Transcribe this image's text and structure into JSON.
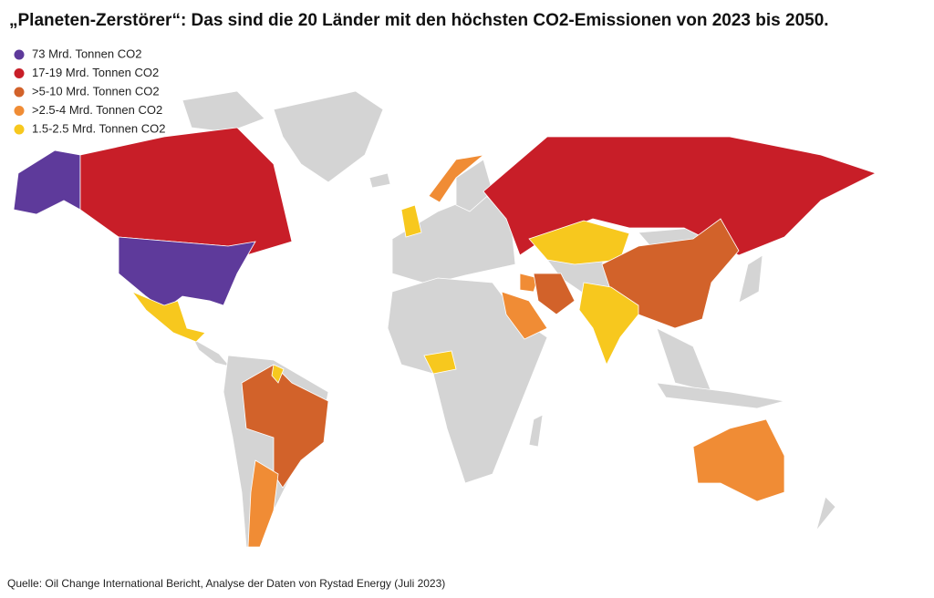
{
  "title": "„Planeten-Zerstörer“: Das sind die 20 Länder mit den höchsten CO2-Emissionen von 2023 bis 2050.",
  "legend": {
    "items": [
      {
        "label": "73 Mrd. Tonnen CO2",
        "color": "#5e3a9b"
      },
      {
        "label": "17-19 Mrd. Tonnen CO2",
        "color": "#c81e28"
      },
      {
        "label": ">5-10 Mrd. Tonnen CO2",
        "color": "#d2622a"
      },
      {
        "label": ">2.5-4 Mrd. Tonnen CO2",
        "color": "#f08c35"
      },
      {
        "label": "1.5-2.5 Mrd. Tonnen CO2",
        "color": "#f7c81e"
      }
    ]
  },
  "source": "Quelle: Oil Change International Bericht, Analyse der Daten von Rystad Energy (Juli 2023)"
}
